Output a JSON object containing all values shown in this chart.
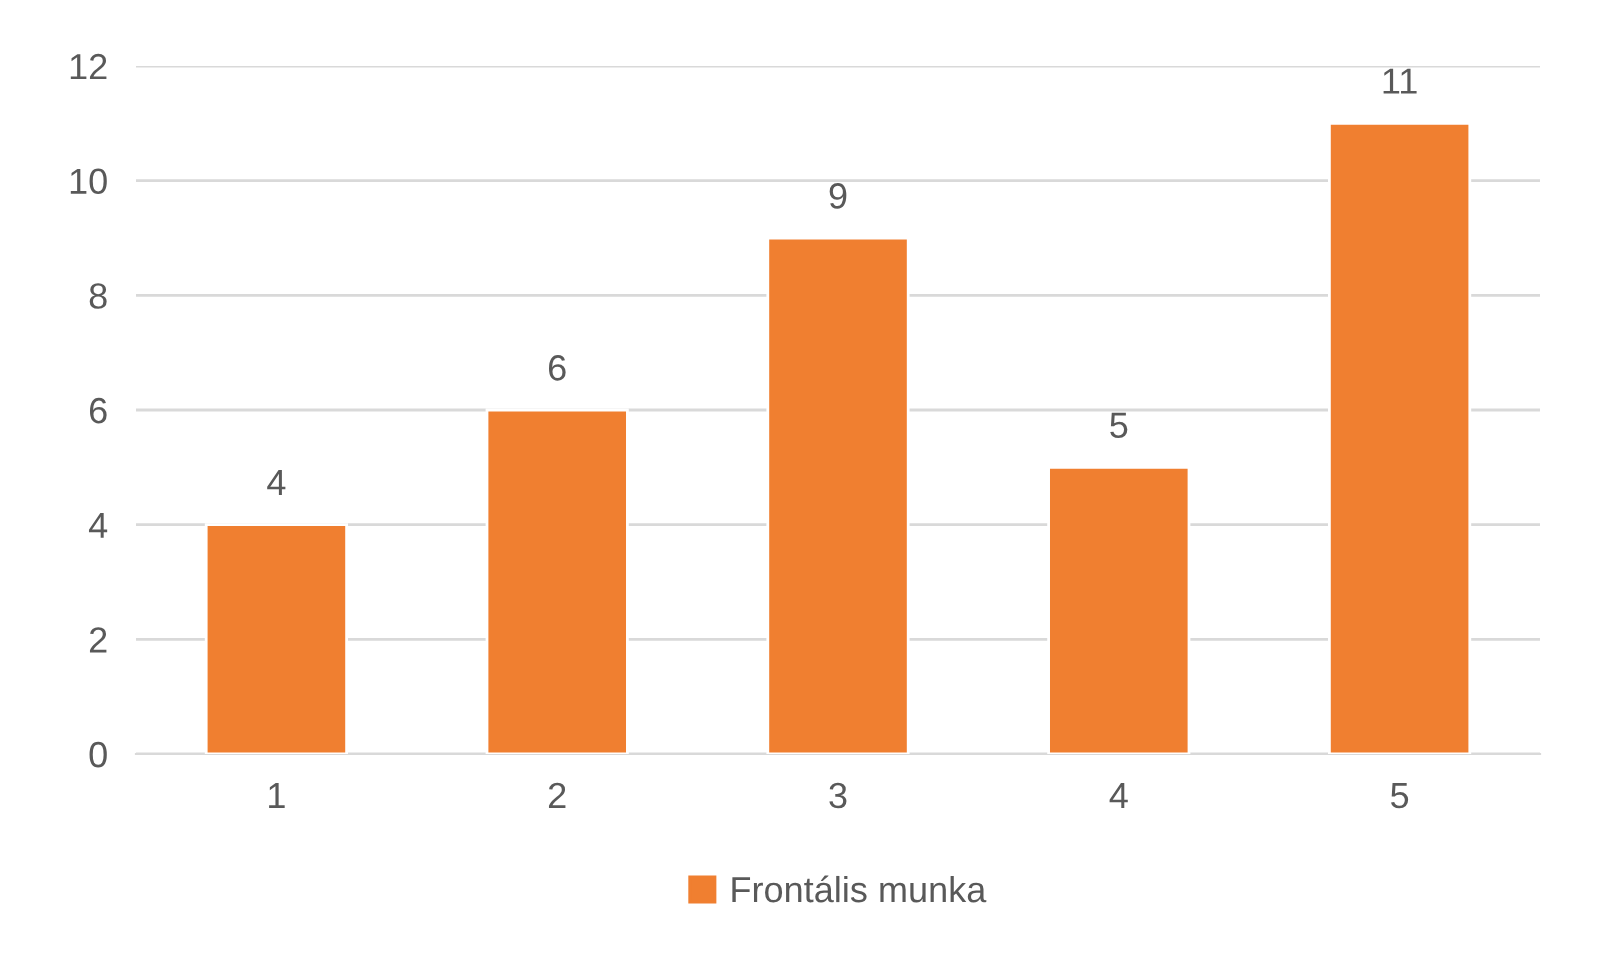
{
  "chart_data": {
    "type": "bar",
    "categories": [
      "1",
      "2",
      "3",
      "4",
      "5"
    ],
    "series": [
      {
        "name": "Frontális munka",
        "color": "#f07f30",
        "values": [
          4,
          6,
          9,
          5,
          11
        ]
      }
    ],
    "ylim": [
      0,
      12
    ],
    "yticks": [
      0,
      2,
      4,
      6,
      8,
      10,
      12
    ],
    "grid": "y",
    "legend": "bottom",
    "data_labels": true
  }
}
